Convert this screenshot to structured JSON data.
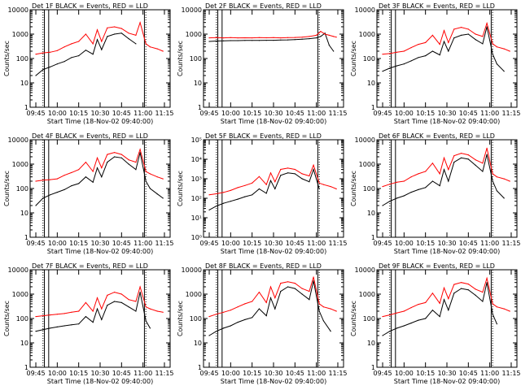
{
  "colors": {
    "events": "#000000",
    "lld": "#ff0000",
    "axis": "#000000"
  },
  "chart_data": [
    {
      "type": "line",
      "title": "Det  1F BLACK = Events, RED = LLD",
      "xlabel": "Start Time (18-Nov-02 09:40:00)",
      "ylabel": "Counts/sec",
      "ylim": [
        1,
        10000
      ],
      "yscale": "log",
      "yticks": [
        "1",
        "10",
        "100",
        "1000",
        "10000"
      ],
      "xticks": [
        "09:45",
        "10:00",
        "10:15",
        "10:30",
        "10:45",
        "11:00",
        "11:15"
      ],
      "x": [
        "09:45",
        "09:50",
        "09:55",
        "10:00",
        "10:05",
        "10:10",
        "10:15",
        "10:20",
        "10:25",
        "10:28",
        "10:31",
        "10:35",
        "10:40",
        "10:45",
        "10:50",
        "10:55",
        "10:58",
        "11:02",
        "11:05",
        "11:10",
        "11:14"
      ],
      "series": [
        {
          "values": [
            20,
            35,
            45,
            60,
            75,
            110,
            130,
            220,
            150,
            600,
            230,
            800,
            1000,
            1100,
            650,
            400,
            null,
            null,
            null,
            null,
            null
          ]
        },
        {
          "values": [
            150,
            170,
            180,
            210,
            300,
            400,
            500,
            1000,
            400,
            1500,
            500,
            1800,
            2000,
            1700,
            1100,
            900,
            3000,
            400,
            300,
            250,
            200
          ]
        }
      ]
    },
    {
      "type": "line",
      "title": "Det  2F BLACK = Events, RED = LLD",
      "xlabel": "Start Time (18-Nov-02 09:40:00)",
      "ylabel": "Counts/sec",
      "ylim": [
        1,
        10000
      ],
      "yscale": "log",
      "yticks": [
        "1",
        "10",
        "100",
        "1000",
        "10000"
      ],
      "xticks": [
        "09:45",
        "10:00",
        "10:15",
        "10:30",
        "10:45",
        "11:00",
        "11:15"
      ],
      "x": [
        "09:45",
        "09:50",
        "09:55",
        "10:00",
        "10:05",
        "10:10",
        "10:15",
        "10:20",
        "10:25",
        "10:30",
        "10:35",
        "10:40",
        "10:45",
        "10:50",
        "10:55",
        "11:00",
        "11:03",
        "11:06",
        "11:09",
        "11:12",
        "11:14"
      ],
      "series": [
        {
          "values": [
            500,
            520,
            530,
            540,
            540,
            550,
            550,
            550,
            560,
            560,
            570,
            580,
            600,
            620,
            650,
            700,
            800,
            1100,
            350,
            200,
            null
          ]
        },
        {
          "values": [
            700,
            720,
            700,
            720,
            700,
            710,
            700,
            720,
            710,
            720,
            700,
            720,
            730,
            750,
            800,
            900,
            1300,
            1000,
            900,
            800,
            750
          ]
        }
      ]
    },
    {
      "type": "line",
      "title": "Det  3F BLACK = Events, RED = LLD",
      "xlabel": "Start Time (18-Nov-02 09:40:00)",
      "ylabel": "Counts/sec",
      "ylim": [
        1,
        10000
      ],
      "yscale": "log",
      "yticks": [
        "1",
        "10",
        "100",
        "1000",
        "10000"
      ],
      "xticks": [
        "09:45",
        "10:00",
        "10:15",
        "10:30",
        "10:45",
        "11:00",
        "11:15"
      ],
      "x": [
        "09:45",
        "09:50",
        "09:55",
        "10:00",
        "10:05",
        "10:10",
        "10:15",
        "10:20",
        "10:25",
        "10:28",
        "10:31",
        "10:35",
        "10:40",
        "10:45",
        "10:50",
        "10:55",
        "10:58",
        "11:02",
        "11:05",
        "11:10",
        "11:14"
      ],
      "series": [
        {
          "values": [
            30,
            40,
            50,
            60,
            80,
            110,
            130,
            200,
            140,
            500,
            200,
            700,
            900,
            1000,
            600,
            400,
            2000,
            150,
            60,
            30,
            null
          ]
        },
        {
          "values": [
            150,
            160,
            180,
            200,
            280,
            380,
            450,
            900,
            380,
            1400,
            450,
            1600,
            1900,
            1600,
            1000,
            800,
            2800,
            400,
            300,
            250,
            200
          ]
        }
      ]
    },
    {
      "type": "line",
      "title": "Det  4F BLACK = Events, RED = LLD",
      "xlabel": "Start Time (18-Nov-02 09:40:00)",
      "ylabel": "Counts/sec",
      "ylim": [
        1,
        10000
      ],
      "yscale": "log",
      "yticks": [
        "1",
        "10",
        "100",
        "1000",
        "10000"
      ],
      "xticks": [
        "09:45",
        "10:00",
        "10:15",
        "10:30",
        "10:45",
        "11:00",
        "11:15"
      ],
      "x": [
        "09:45",
        "09:50",
        "09:55",
        "10:00",
        "10:05",
        "10:10",
        "10:15",
        "10:20",
        "10:25",
        "10:28",
        "10:31",
        "10:35",
        "10:40",
        "10:45",
        "10:50",
        "10:55",
        "10:58",
        "11:02",
        "11:05",
        "11:10",
        "11:14"
      ],
      "series": [
        {
          "values": [
            20,
            40,
            55,
            70,
            90,
            130,
            160,
            300,
            180,
            700,
            300,
            1200,
            2000,
            1800,
            1000,
            600,
            3000,
            200,
            100,
            60,
            40
          ]
        },
        {
          "values": [
            200,
            220,
            230,
            250,
            350,
            450,
            600,
            1200,
            500,
            1800,
            700,
            2500,
            3000,
            2500,
            1500,
            1200,
            4000,
            500,
            400,
            300,
            250
          ]
        }
      ]
    },
    {
      "type": "line",
      "title": "Det  5F BLACK = Events, RED = LLD",
      "xlabel": "Start Time (18-Nov-02 09:40:00)",
      "ylabel": "Counts/sec",
      "ylim": [
        1,
        100000
      ],
      "yscale": "log",
      "yticks": [
        "10⁰",
        "10¹",
        "10²",
        "10³",
        "10⁴",
        "10⁵"
      ],
      "xticks": [
        "09:45",
        "10:00",
        "10:15",
        "10:30",
        "10:45",
        "11:00",
        "11:15"
      ],
      "x": [
        "09:45",
        "09:50",
        "09:55",
        "10:00",
        "10:05",
        "10:10",
        "10:15",
        "10:20",
        "10:25",
        "10:28",
        "10:31",
        "10:35",
        "10:40",
        "10:45",
        "10:50",
        "10:55",
        "10:58",
        "11:02",
        "11:05",
        "11:10",
        "11:14"
      ],
      "series": [
        {
          "values": [
            25,
            40,
            55,
            70,
            90,
            120,
            150,
            300,
            180,
            800,
            300,
            1500,
            2000,
            1800,
            1000,
            700,
            3000,
            300,
            null,
            null,
            null
          ]
        },
        {
          "values": [
            150,
            170,
            200,
            250,
            350,
            450,
            600,
            1300,
            500,
            2000,
            700,
            3000,
            3500,
            3000,
            1800,
            1400,
            5000,
            600,
            500,
            400,
            300
          ]
        }
      ]
    },
    {
      "type": "line",
      "title": "Det  6F BLACK = Events, RED = LLD",
      "xlabel": "Start Time (18-Nov-02 09:40:00)",
      "ylabel": "Counts/sec",
      "ylim": [
        1,
        10000
      ],
      "yscale": "log",
      "yticks": [
        "1",
        "10",
        "100",
        "1000",
        "10000"
      ],
      "xticks": [
        "09:45",
        "10:00",
        "10:15",
        "10:30",
        "10:45",
        "11:00",
        "11:15"
      ],
      "x": [
        "09:45",
        "09:50",
        "09:55",
        "10:00",
        "10:05",
        "10:10",
        "10:15",
        "10:20",
        "10:25",
        "10:28",
        "10:31",
        "10:35",
        "10:40",
        "10:45",
        "10:50",
        "10:55",
        "10:58",
        "11:02",
        "11:05",
        "11:10",
        "11:14"
      ],
      "series": [
        {
          "values": [
            20,
            30,
            40,
            50,
            70,
            90,
            110,
            200,
            130,
            600,
            200,
            1200,
            1800,
            1600,
            900,
            500,
            2500,
            200,
            80,
            40,
            null
          ]
        },
        {
          "values": [
            120,
            150,
            180,
            200,
            300,
            400,
            500,
            1100,
            400,
            1800,
            600,
            2200,
            2800,
            2400,
            1500,
            1100,
            4500,
            400,
            300,
            250,
            200
          ]
        }
      ]
    },
    {
      "type": "line",
      "title": "Det  7F BLACK = Events, RED = LLD",
      "xlabel": "Start Time (18-Nov-02 09:40:00)",
      "ylabel": "Counts/sec",
      "ylim": [
        1,
        10000
      ],
      "yscale": "log",
      "yticks": [
        "1",
        "10",
        "100",
        "1000",
        "10000"
      ],
      "xticks": [
        "09:45",
        "10:00",
        "10:15",
        "10:30",
        "10:45",
        "11:00",
        "11:15"
      ],
      "x": [
        "09:45",
        "09:50",
        "09:55",
        "10:00",
        "10:05",
        "10:10",
        "10:15",
        "10:20",
        "10:25",
        "10:28",
        "10:31",
        "10:35",
        "10:40",
        "10:45",
        "10:50",
        "10:55",
        "10:58",
        "11:02",
        "11:05",
        "11:10",
        "11:14"
      ],
      "series": [
        {
          "values": [
            30,
            35,
            40,
            45,
            50,
            55,
            60,
            120,
            70,
            250,
            90,
            350,
            500,
            450,
            300,
            200,
            1200,
            80,
            40,
            null,
            null
          ]
        },
        {
          "values": [
            120,
            130,
            140,
            150,
            160,
            180,
            200,
            450,
            200,
            700,
            250,
            900,
            1200,
            1000,
            600,
            500,
            2000,
            300,
            250,
            200,
            180
          ]
        }
      ]
    },
    {
      "type": "line",
      "title": "Det  8F BLACK = Events, RED = LLD",
      "xlabel": "Start Time (18-Nov-02 09:40:00)",
      "ylabel": "Counts/sec",
      "ylim": [
        1,
        10000
      ],
      "yscale": "log",
      "yticks": [
        "1",
        "10",
        "100",
        "1000",
        "10000"
      ],
      "xticks": [
        "09:45",
        "10:00",
        "10:15",
        "10:30",
        "10:45",
        "11:00",
        "11:15"
      ],
      "x": [
        "09:45",
        "09:50",
        "09:55",
        "10:00",
        "10:05",
        "10:10",
        "10:15",
        "10:20",
        "10:25",
        "10:28",
        "10:31",
        "10:35",
        "10:40",
        "10:45",
        "10:50",
        "10:55",
        "10:58",
        "11:02",
        "11:05",
        "11:10",
        "11:14"
      ],
      "series": [
        {
          "values": [
            20,
            30,
            40,
            50,
            70,
            90,
            110,
            250,
            130,
            700,
            250,
            1300,
            2000,
            1700,
            1000,
            600,
            3500,
            200,
            80,
            30,
            null
          ]
        },
        {
          "values": [
            120,
            150,
            180,
            220,
            300,
            400,
            500,
            1200,
            450,
            2000,
            700,
            2800,
            3200,
            2800,
            1700,
            1300,
            5000,
            400,
            300,
            250,
            200
          ]
        }
      ]
    },
    {
      "type": "line",
      "title": "Det  9F BLACK = Events, RED = LLD",
      "xlabel": "Start Time (18-Nov-02 09:40:00)",
      "ylabel": "Counts/sec",
      "ylim": [
        1,
        10000
      ],
      "yscale": "log",
      "yticks": [
        "1",
        "10",
        "100",
        "1000",
        "10000"
      ],
      "xticks": [
        "09:45",
        "10:00",
        "10:15",
        "10:30",
        "10:45",
        "11:00",
        "11:15"
      ],
      "x": [
        "09:45",
        "09:50",
        "09:55",
        "10:00",
        "10:05",
        "10:10",
        "10:15",
        "10:20",
        "10:25",
        "10:28",
        "10:31",
        "10:35",
        "10:40",
        "10:45",
        "10:50",
        "10:55",
        "10:58",
        "11:02",
        "11:05",
        "11:10",
        "11:14"
      ],
      "series": [
        {
          "values": [
            20,
            30,
            40,
            50,
            65,
            85,
            100,
            220,
            120,
            600,
            220,
            1100,
            1700,
            1500,
            900,
            500,
            3000,
            150,
            60,
            null,
            null
          ]
        },
        {
          "values": [
            120,
            140,
            170,
            200,
            280,
            380,
            450,
            1100,
            420,
            1800,
            650,
            2500,
            3000,
            2600,
            1600,
            1200,
            4500,
            400,
            300,
            250,
            200
          ]
        }
      ]
    }
  ]
}
